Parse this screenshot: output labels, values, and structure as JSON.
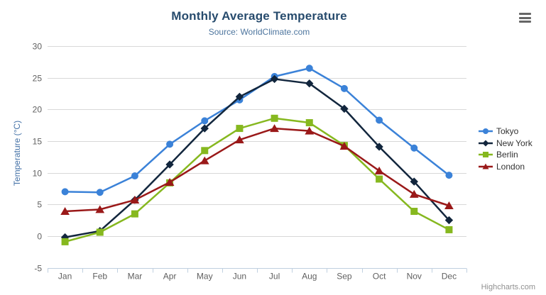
{
  "chart_data": {
    "type": "line",
    "title": "Monthly Average Temperature",
    "subtitle": "Source: WorldClimate.com",
    "categories": [
      "Jan",
      "Feb",
      "Mar",
      "Apr",
      "May",
      "Jun",
      "Jul",
      "Aug",
      "Sep",
      "Oct",
      "Nov",
      "Dec"
    ],
    "series": [
      {
        "name": "Tokyo",
        "color": "#3b82d8",
        "marker": "circle",
        "values": [
          7.0,
          6.9,
          9.5,
          14.5,
          18.2,
          21.5,
          25.2,
          26.5,
          23.3,
          18.3,
          13.9,
          9.6
        ]
      },
      {
        "name": "New York",
        "color": "#12263d",
        "marker": "diamond",
        "values": [
          -0.2,
          0.8,
          5.7,
          11.3,
          17.0,
          22.0,
          24.8,
          24.1,
          20.1,
          14.1,
          8.6,
          2.5
        ]
      },
      {
        "name": "Berlin",
        "color": "#86b81f",
        "marker": "square",
        "values": [
          -0.9,
          0.6,
          3.5,
          8.4,
          13.5,
          17.0,
          18.6,
          17.9,
          14.3,
          9.0,
          3.9,
          1.0
        ]
      },
      {
        "name": "London",
        "color": "#9a1919",
        "marker": "triangle",
        "values": [
          3.9,
          4.2,
          5.7,
          8.5,
          11.9,
          15.2,
          17.0,
          16.6,
          14.2,
          10.3,
          6.6,
          4.8
        ]
      }
    ],
    "xlabel": "",
    "ylabel": "Temperature (°C)",
    "ylim": [
      -5,
      30
    ],
    "yticks": [
      -5,
      0,
      5,
      10,
      15,
      20,
      25,
      30
    ],
    "grid": true,
    "legend_position": "right"
  },
  "colors": {
    "grid_line": "#d8d8d8",
    "axis_line": "#c0d0e0",
    "tick_label": "#606060",
    "title": "#274b6d",
    "subtitle": "#4d759e",
    "y_axis_title": "#4572a7",
    "legend_text": "#333333",
    "credits_text": "#909090",
    "menu_icon": "#666666"
  },
  "icons": {
    "context_menu": "hamburger-icon"
  },
  "credits": {
    "label": "Highcharts.com"
  }
}
